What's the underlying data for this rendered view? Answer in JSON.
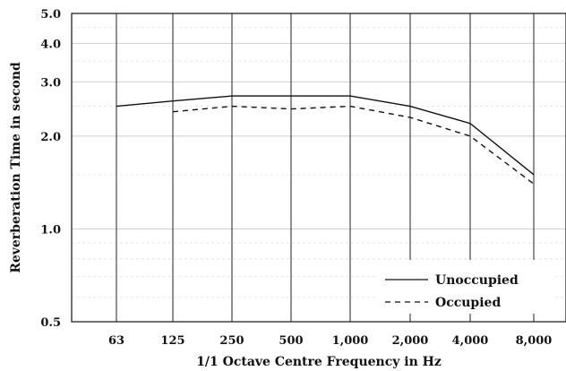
{
  "chart_data": {
    "type": "line",
    "title": "",
    "xlabel": "1/1 Octave Centre Frequency in Hz",
    "ylabel": "Reverberation Time in second",
    "categories": [
      "63",
      "125",
      "250",
      "500",
      "1,000",
      "2,000",
      "4,000",
      "8,000"
    ],
    "y_scale": "log",
    "ylim": [
      0.5,
      5.0
    ],
    "y_ticks": [
      {
        "value": 0.5,
        "label": "0.5"
      },
      {
        "value": 1.0,
        "label": "1.0"
      },
      {
        "value": 2.0,
        "label": "2.0"
      },
      {
        "value": 3.0,
        "label": "3.0"
      },
      {
        "value": 4.0,
        "label": "4.0"
      },
      {
        "value": 5.0,
        "label": "5.0"
      }
    ],
    "minor_gridlines": [
      0.6,
      0.7,
      0.8,
      0.9,
      1.5,
      2.5,
      3.5,
      4.5
    ],
    "grid": true,
    "legend_position": "bottom-right",
    "series": [
      {
        "name": "Unoccupied",
        "style": "solid",
        "values": [
          2.5,
          2.6,
          2.7,
          2.7,
          2.7,
          2.5,
          2.2,
          1.5
        ]
      },
      {
        "name": "Occupied",
        "style": "dashed",
        "values": [
          null,
          2.4,
          2.5,
          2.45,
          2.5,
          2.3,
          2.0,
          1.4
        ]
      }
    ]
  }
}
